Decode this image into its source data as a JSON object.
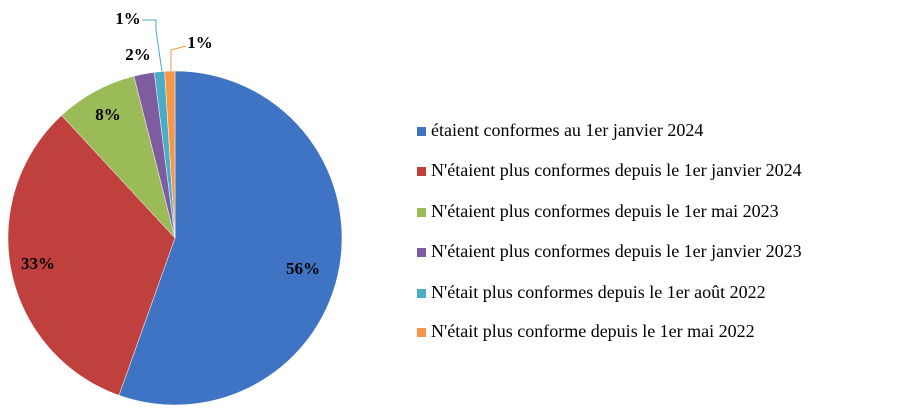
{
  "chart_data": {
    "type": "pie",
    "categories": [
      "étaient conformes au 1er janvier 2024",
      "N'étaient plus conformes depuis le 1er janvier 2024",
      "N'étaient plus conformes depuis le 1er mai 2023",
      "N'étaient plus conformes depuis le 1er janvier 2023",
      "N'était plus conformes depuis le 1er août 2022",
      "N'était plus conforme depuis le 1er mai 2022"
    ],
    "values": [
      56,
      33,
      8,
      2,
      1,
      1
    ],
    "value_labels": [
      "56%",
      "33%",
      "8%",
      "2%",
      "1%",
      "1%"
    ],
    "colors": [
      "#3f74c5",
      "#c0403d",
      "#9bbb59",
      "#7d5ca0",
      "#4bacc6",
      "#f79646"
    ],
    "legend": "right"
  }
}
